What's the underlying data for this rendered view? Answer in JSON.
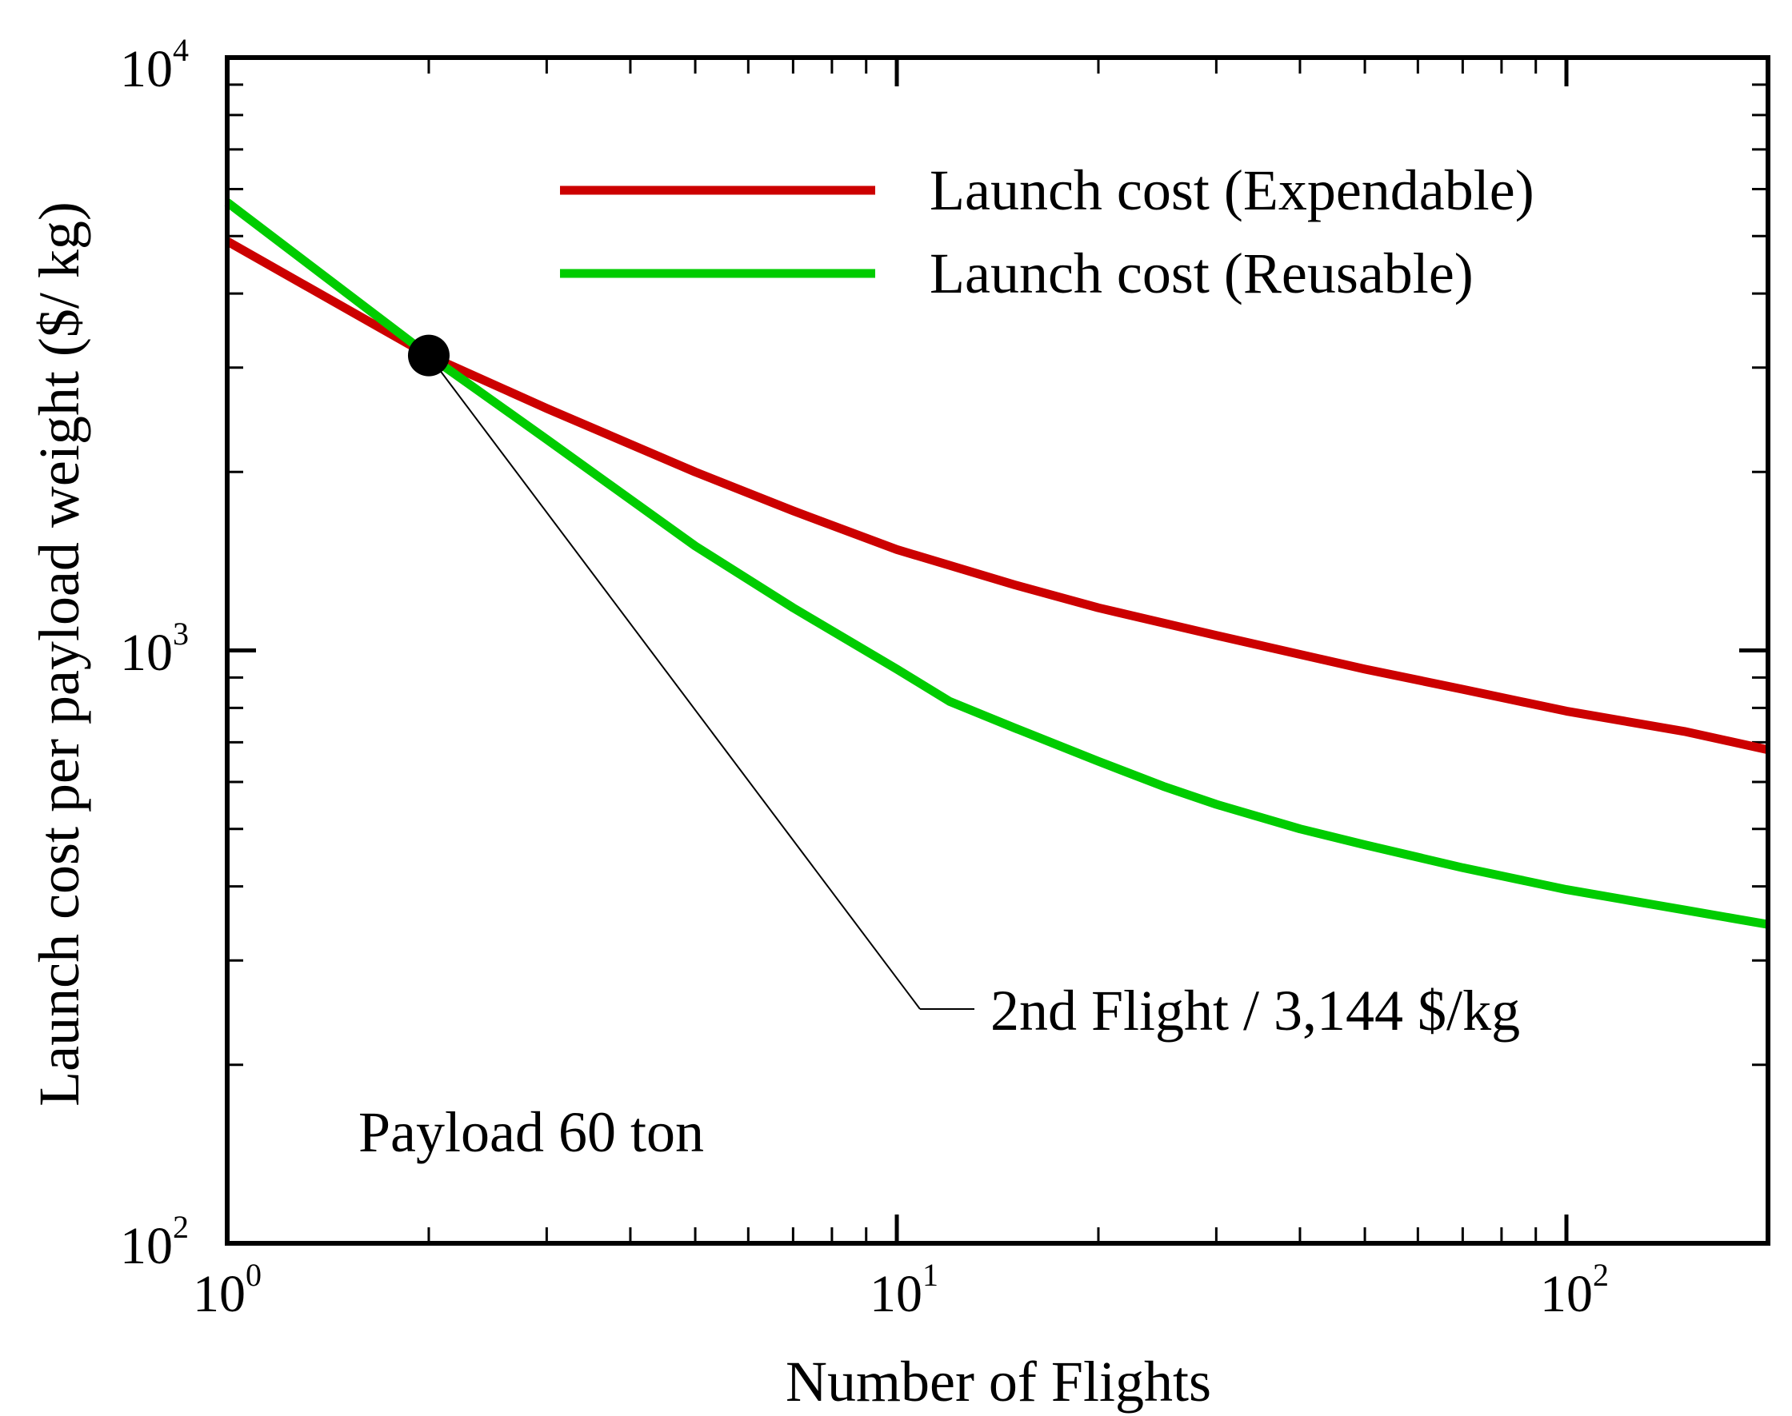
{
  "chart_data": {
    "type": "line",
    "xscale": "log",
    "yscale": "log",
    "xlim": [
      1,
      200
    ],
    "ylim": [
      100,
      10000
    ],
    "xlabel": "Number of Flights",
    "ylabel": "Launch cost per payload weight ($/ kg)",
    "x_ticks": [
      {
        "base": "10",
        "exp": "0",
        "value": 1
      },
      {
        "base": "10",
        "exp": "1",
        "value": 10
      },
      {
        "base": "10",
        "exp": "2",
        "value": 100
      }
    ],
    "y_ticks": [
      {
        "base": "10",
        "exp": "2",
        "value": 100
      },
      {
        "base": "10",
        "exp": "3",
        "value": 1000
      },
      {
        "base": "10",
        "exp": "4",
        "value": 10000
      }
    ],
    "series": [
      {
        "name": "Launch cost (Expendable)",
        "color": "#cc0000",
        "x": [
          1,
          2,
          3,
          5,
          7,
          10,
          15,
          20,
          30,
          50,
          70,
          100,
          150,
          200
        ],
        "y": [
          4900,
          3144,
          2560,
          2000,
          1720,
          1480,
          1290,
          1180,
          1060,
          930,
          860,
          790,
          730,
          680
        ]
      },
      {
        "name": "Launch cost (Reusable)",
        "color": "#00cc00",
        "x": [
          1,
          2,
          3,
          5,
          7,
          10,
          12,
          15,
          20,
          25,
          30,
          40,
          50,
          70,
          100,
          150,
          200
        ],
        "y": [
          5700,
          3144,
          2270,
          1500,
          1180,
          930,
          820,
          740,
          650,
          590,
          550,
          500,
          470,
          430,
          395,
          365,
          345
        ]
      }
    ],
    "annotations": [
      {
        "text": "2nd Flight / 3,144 $/kg",
        "x": 2,
        "y": 3144
      },
      {
        "text": "Payload 60 ton"
      }
    ],
    "marker_color": "#000000"
  }
}
